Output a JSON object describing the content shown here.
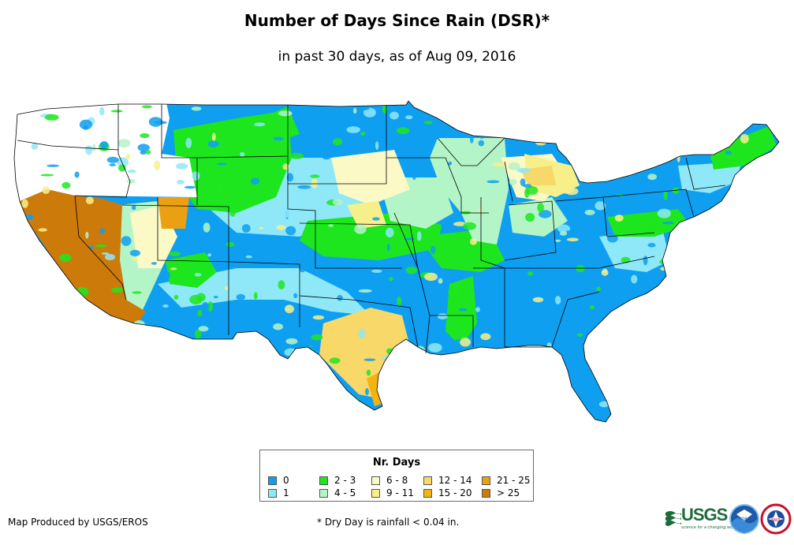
{
  "title": "Number of Days Since Rain (DSR)*",
  "subtitle": "in past 30 days, as of Aug 09, 2016",
  "legend": {
    "title": "Nr. Days",
    "items": [
      {
        "label": "0",
        "color": "#0f9ff0"
      },
      {
        "label": "1",
        "color": "#8fe8f8"
      },
      {
        "label": "2 - 3",
        "color": "#1ee61e"
      },
      {
        "label": "4 - 5",
        "color": "#b4f5c8"
      },
      {
        "label": "6 - 8",
        "color": "#fbf9c6"
      },
      {
        "label": "9 - 11",
        "color": "#f7f08a"
      },
      {
        "label": "12 - 14",
        "color": "#f7d868"
      },
      {
        "label": "15 - 20",
        "color": "#f5b312"
      },
      {
        "label": "21 - 25",
        "color": "#eba014"
      },
      {
        "label": "> 25",
        "color": "#cc7a0a"
      }
    ]
  },
  "credit": "Map Produced by USGS/EROS",
  "footnote": "* Dry Day is rainfall < 0.04 in.",
  "logos": {
    "usgs_text": "USGS",
    "usgs_tagline": "science for a changing world",
    "noaa_text": "noaa",
    "nws_text": "NWS"
  },
  "colors": {
    "no_data": "#ffffff",
    "state_border": "#000000"
  }
}
